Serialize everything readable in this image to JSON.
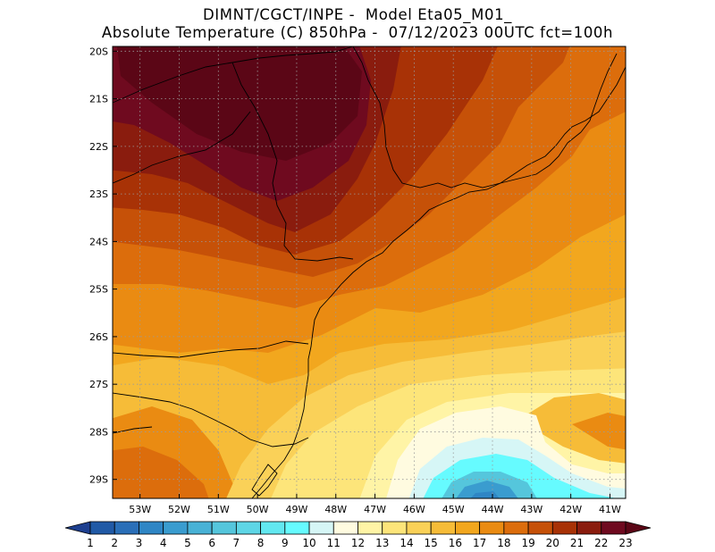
{
  "title": {
    "line1": "DIMNT/CGCT/INPE -  Model Eta05_M01_",
    "line2": "Absolute Temperature (C) 850hPa -  07/12/2023 00UTC fct=100h"
  },
  "axes": {
    "lat_labels": [
      "20S",
      "21S",
      "22S",
      "23S",
      "24S",
      "25S",
      "26S",
      "27S",
      "28S",
      "29S"
    ],
    "lon_labels": [
      "53W",
      "52W",
      "51W",
      "50W",
      "49W",
      "48W",
      "47W",
      "46W",
      "45W",
      "44W",
      "43W",
      "42W",
      "41W"
    ],
    "lat_range": [
      -29.4,
      -19.9
    ],
    "lon_range": [
      -53.7,
      -40.6
    ]
  },
  "colorbar": {
    "labels": [
      "1",
      "2",
      "3",
      "4",
      "5",
      "6",
      "7",
      "8",
      "9",
      "10",
      "11",
      "12",
      "13",
      "14",
      "15",
      "16",
      "17",
      "18",
      "19",
      "20",
      "21",
      "22",
      "23"
    ],
    "colors": [
      "#1d3f8f",
      "#215aa6",
      "#2a6fb8",
      "#2f86c5",
      "#3a9ccf",
      "#49b2d6",
      "#55c6dc",
      "#5ed6e6",
      "#62e8f0",
      "#66fbff",
      "#d6f6f6",
      "#fffbe0",
      "#fff4a6",
      "#fde57a",
      "#fad158",
      "#f6bc38",
      "#f2a71e",
      "#ea8b12",
      "#dc6d0c",
      "#c65108",
      "#a83206",
      "#8a1c0e",
      "#6f0a1f",
      "#5b0616"
    ],
    "unit": "C"
  }
}
